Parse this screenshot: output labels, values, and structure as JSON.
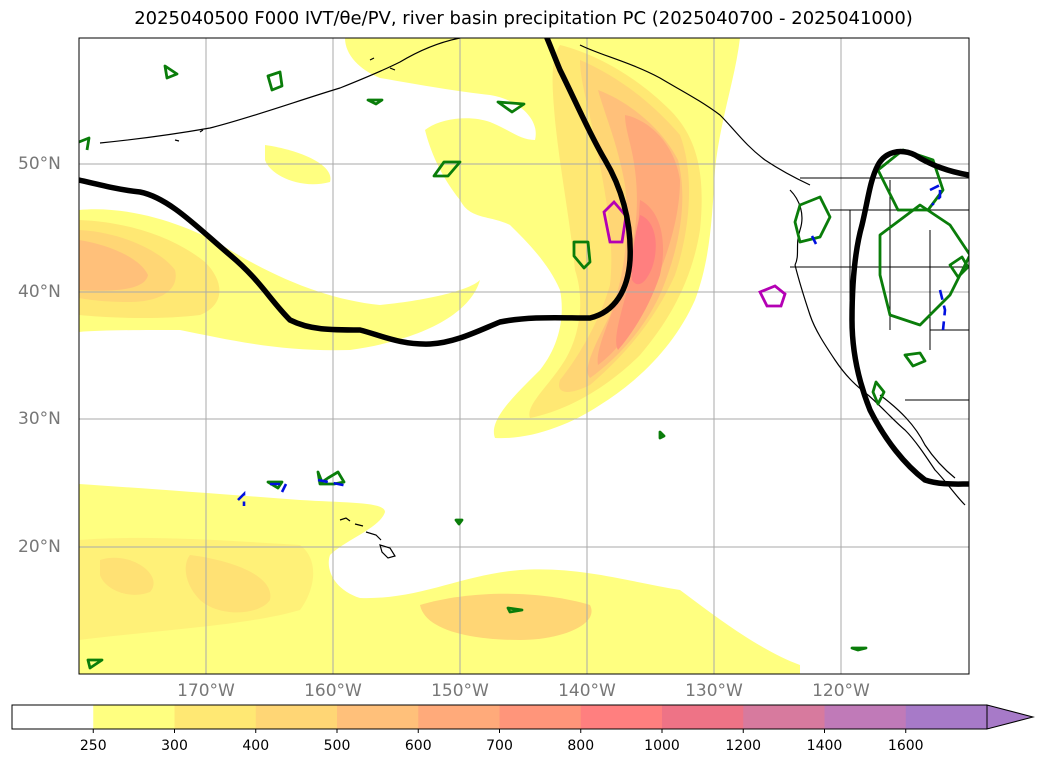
{
  "title": "2025040500 F000 IVT/θe/PV, river basin precipitation PC (2025040700 - 2025041000)",
  "map": {
    "lat_labels": [
      "50°N",
      "40°N",
      "30°N",
      "20°N"
    ],
    "lon_labels": [
      "170°W",
      "160°W",
      "150°W",
      "140°W",
      "130°W",
      "120°W"
    ],
    "ivt_colors": {
      "250": "#ffff80",
      "300": "#ffe873",
      "400": "#ffd675",
      "500": "#ffc07a",
      "600": "#ffaa7a",
      "700": "#ff957a",
      "800": "#ff7f7f",
      "1000": "#ee7386",
      "1200": "#d77a9e",
      "1400": "#c07ab8",
      "1600": "#a77ac8"
    },
    "contour_colors": {
      "theta_e": "#000000",
      "pv_positive": "#0a7d0a",
      "pv_negative": "#0010e0",
      "precip": "#b400b4"
    }
  },
  "colorbar": {
    "ticks": [
      "250",
      "300",
      "400",
      "500",
      "600",
      "700",
      "800",
      "1000",
      "1200",
      "1400",
      "1600"
    ],
    "colors": [
      "#ffffff",
      "#ffff80",
      "#ffe873",
      "#ffd675",
      "#ffc07a",
      "#ffaa7a",
      "#ff957a",
      "#ff7f7f",
      "#ee7386",
      "#d77a9e",
      "#c07ab8",
      "#a77ac8"
    ],
    "extend": "max"
  }
}
